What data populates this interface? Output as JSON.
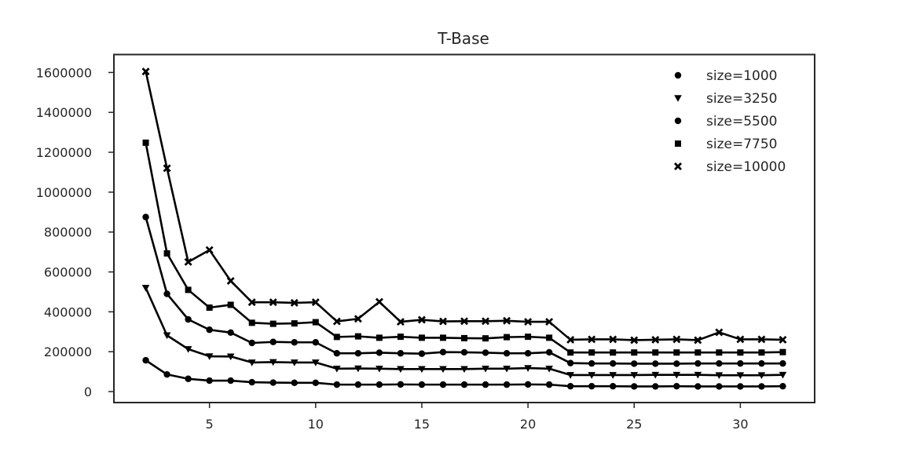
{
  "chart_data": {
    "type": "line",
    "title": "T-Base",
    "xlabel": "",
    "ylabel": "",
    "xlim": [
      0.5,
      33.5
    ],
    "ylim": [
      -55000,
      1690000
    ],
    "xticks": [
      5,
      10,
      15,
      20,
      25,
      30
    ],
    "yticks": [
      0,
      200000,
      400000,
      600000,
      800000,
      1000000,
      1200000,
      1400000,
      1600000
    ],
    "grid": false,
    "legend_position": "top-right",
    "line_color": "#000000",
    "x": [
      2,
      3,
      4,
      5,
      6,
      7,
      8,
      9,
      10,
      11,
      12,
      13,
      14,
      15,
      16,
      17,
      18,
      19,
      20,
      21,
      22,
      23,
      24,
      25,
      26,
      27,
      28,
      29,
      30,
      31,
      32
    ],
    "series": [
      {
        "name": "size=1000",
        "marker": "circle",
        "values": [
          157000,
          86000,
          64000,
          55000,
          55000,
          47000,
          45000,
          44000,
          44000,
          35000,
          35000,
          35000,
          36000,
          35000,
          35000,
          35000,
          35000,
          35000,
          36000,
          35000,
          27000,
          27000,
          27000,
          26000,
          26000,
          27000,
          26000,
          26000,
          26000,
          26000,
          27000
        ]
      },
      {
        "name": "size=3250",
        "marker": "triangle-down",
        "values": [
          520000,
          282000,
          213000,
          177000,
          176000,
          146000,
          148000,
          146000,
          146000,
          115000,
          116000,
          115000,
          113000,
          113000,
          113000,
          113000,
          115000,
          115000,
          118000,
          115000,
          83000,
          83000,
          83000,
          83000,
          84000,
          84000,
          84000,
          82000,
          82000,
          82000,
          84000
        ]
      },
      {
        "name": "size=5500",
        "marker": "circle",
        "values": [
          875000,
          490000,
          362000,
          310000,
          296000,
          244000,
          249000,
          247000,
          247000,
          192000,
          192000,
          195000,
          192000,
          190000,
          198000,
          197000,
          195000,
          192000,
          192000,
          197000,
          143000,
          141000,
          141000,
          140000,
          140000,
          140000,
          141000,
          141000,
          141000,
          141000,
          141000
        ]
      },
      {
        "name": "size=7750",
        "marker": "square",
        "values": [
          1248000,
          693000,
          510000,
          421000,
          435000,
          345000,
          340000,
          342000,
          348000,
          274000,
          277000,
          270000,
          275000,
          270000,
          270000,
          268000,
          267000,
          273000,
          275000,
          270000,
          196000,
          196000,
          196000,
          196000,
          196000,
          196000,
          196000,
          196000,
          196000,
          196000,
          198000
        ]
      },
      {
        "name": "size=10000",
        "marker": "x",
        "values": [
          1605000,
          1120000,
          650000,
          710000,
          555000,
          448000,
          448000,
          445000,
          448000,
          352000,
          365000,
          450000,
          350000,
          360000,
          352000,
          353000,
          353000,
          355000,
          350000,
          350000,
          260000,
          262000,
          262000,
          258000,
          260000,
          262000,
          258000,
          297000,
          262000,
          262000,
          260000
        ]
      }
    ]
  }
}
